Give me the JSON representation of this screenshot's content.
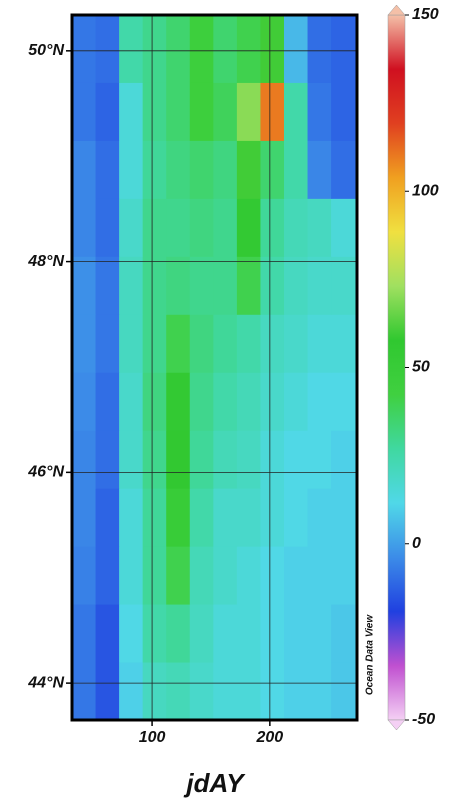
{
  "chart_data": {
    "type": "heatmap",
    "xlabel": "jdAY",
    "watermark": "Ocean Data View",
    "xlim": [
      32,
      274
    ],
    "ylim": [
      43.65,
      50.34
    ],
    "xticks": [
      100,
      200
    ],
    "yticks": [
      {
        "value": 44,
        "label": "44°N"
      },
      {
        "value": 46,
        "label": "46°N"
      },
      {
        "value": 48,
        "label": "48°N"
      },
      {
        "value": 50,
        "label": "50°N"
      }
    ],
    "grid": true,
    "xbins": [
      32,
      52,
      72,
      92,
      112,
      132,
      152,
      172,
      192,
      212,
      232,
      252,
      274
    ],
    "ybins": [
      43.65,
      44.2,
      44.75,
      45.3,
      45.85,
      46.4,
      46.95,
      47.5,
      48.05,
      48.6,
      49.15,
      49.7,
      50.34
    ],
    "values": [
      [
        -8,
        -15,
        10,
        20,
        22,
        18,
        15,
        15,
        12,
        10,
        10,
        8
      ],
      [
        -8,
        -15,
        12,
        25,
        28,
        20,
        15,
        15,
        12,
        10,
        10,
        8
      ],
      [
        -6,
        -12,
        15,
        28,
        40,
        22,
        18,
        15,
        12,
        10,
        10,
        10
      ],
      [
        -5,
        -12,
        15,
        28,
        50,
        25,
        18,
        18,
        15,
        12,
        10,
        10
      ],
      [
        -5,
        -10,
        18,
        30,
        58,
        28,
        22,
        20,
        15,
        12,
        12,
        10
      ],
      [
        -4,
        -10,
        18,
        32,
        55,
        30,
        25,
        22,
        18,
        15,
        12,
        12
      ],
      [
        -3,
        -8,
        20,
        30,
        40,
        32,
        28,
        25,
        20,
        18,
        15,
        15
      ],
      [
        -3,
        -8,
        20,
        30,
        32,
        30,
        30,
        40,
        25,
        20,
        18,
        18
      ],
      [
        -5,
        -10,
        18,
        30,
        30,
        32,
        30,
        55,
        28,
        22,
        20,
        15
      ],
      [
        -5,
        -10,
        15,
        28,
        32,
        35,
        32,
        60,
        35,
        25,
        -5,
        -10
      ],
      [
        -8,
        -12,
        15,
        30,
        35,
        45,
        38,
        70,
        110,
        25,
        -8,
        -12
      ],
      [
        -8,
        -10,
        25,
        30,
        35,
        45,
        35,
        40,
        60,
        5,
        -10,
        -12
      ]
    ],
    "colorbar_lim": [
      -50,
      150
    ],
    "colorbar_ticks": [
      -50,
      0,
      50,
      100,
      150
    ],
    "colormap": [
      "#f4d0f4",
      "#c050d0",
      "#2040e0",
      "#3c8ce8",
      "#50d8e8",
      "#40d8a0",
      "#40d040",
      "#30c830",
      "#a0e060",
      "#f0e040",
      "#f0a020",
      "#e04020",
      "#d01020",
      "#f4c0a8"
    ]
  }
}
